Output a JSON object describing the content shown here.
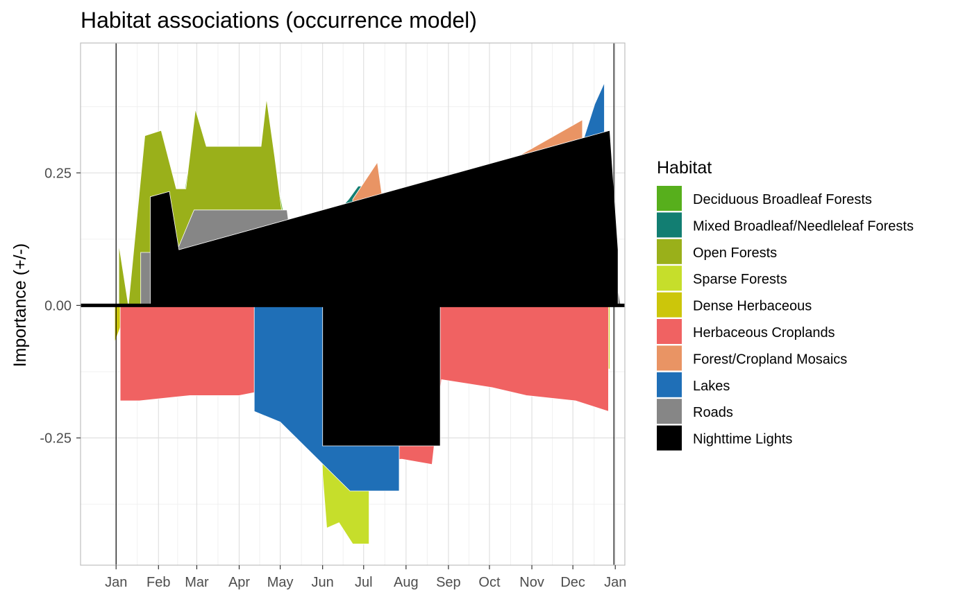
{
  "chart_data": {
    "type": "area",
    "title": "Habitat associations (occurrence model)",
    "xlabel": "",
    "ylabel": "Importance (+/-)",
    "ylim": [
      -0.49,
      0.495
    ],
    "y_ticks": [
      -0.25,
      0.0,
      0.25
    ],
    "y_tick_labels": [
      "-0.25",
      "0.00",
      "0.25"
    ],
    "x_unit": "day of year",
    "xlim": [
      -25,
      373
    ],
    "x_ticks": [
      1,
      32,
      60,
      91,
      121,
      152,
      182,
      213,
      244,
      274,
      305,
      335,
      366
    ],
    "x_tick_labels": [
      "Jan",
      "Feb",
      "Mar",
      "Apr",
      "May",
      "Jun",
      "Jul",
      "Aug",
      "Sep",
      "Oct",
      "Nov",
      "Dec",
      "Jan"
    ],
    "vlines": [
      1,
      365
    ],
    "zero_line": 0,
    "grid": true,
    "legend": {
      "title": "Habitat",
      "position": "right"
    },
    "series": [
      {
        "name": "Deciduous Broadleaf Forests",
        "color": "#57AF1C",
        "positive": [
          [
            45,
            0.1
          ],
          [
            53,
            0.25
          ],
          [
            59,
            0.18
          ],
          [
            105,
            0.18
          ],
          [
            109,
            0.275
          ],
          [
            116,
            0.28
          ],
          [
            123,
            0.18
          ],
          [
            125,
            0.09
          ],
          [
            129,
            0.1
          ],
          [
            130,
            0.106
          ],
          [
            150,
            0.122
          ],
          [
            156,
            0.183
          ],
          [
            162,
            0.186
          ],
          [
            167,
            0.18
          ],
          [
            169,
            0.185
          ],
          [
            175,
            0.19
          ],
          [
            180,
            0.195
          ],
          [
            186,
            0.19
          ],
          [
            193,
            0.143
          ],
          [
            210,
            0.135
          ],
          [
            231,
            0.115
          ],
          [
            250,
            0.095
          ],
          [
            269,
            0.083
          ],
          [
            274,
            0.15
          ],
          [
            284,
            0.0
          ]
        ],
        "negative": [],
        "peaks": [
          [
            345,
            0.22
          ]
        ]
      },
      {
        "name": "Mixed Broadleaf/Needleleaf Forests",
        "color": "#127E72",
        "positive": [
          [
            147,
            0.125
          ],
          [
            155,
            0.14
          ],
          [
            160,
            0.15
          ],
          [
            164,
            0.18
          ],
          [
            171,
            0.2
          ],
          [
            178,
            0.225
          ],
          [
            183,
            0.225
          ],
          [
            186,
            0.195
          ]
        ],
        "negative": []
      },
      {
        "name": "Open Forests",
        "color": "#9AB01A",
        "positive": [
          [
            3,
            0.115
          ],
          [
            10,
            0.0
          ],
          [
            22,
            0.32
          ],
          [
            34,
            0.33
          ],
          [
            45,
            0.22
          ],
          [
            52,
            0.22
          ],
          [
            59,
            0.37
          ],
          [
            67,
            0.3
          ],
          [
            85,
            0.3
          ],
          [
            107,
            0.3
          ],
          [
            111,
            0.39
          ],
          [
            117,
            0.28
          ],
          [
            122,
            0.18
          ]
        ],
        "negative": [
          [
            3,
            -0.09
          ]
        ],
        "peaks": [
          [
            195,
            0.265
          ]
        ]
      },
      {
        "name": "Sparse Forests",
        "color": "#C6DE2B",
        "positive": [
          [
            356,
            0.24
          ],
          [
            362,
            0.19
          ]
        ],
        "negative": [
          [
            134,
            -0.14
          ],
          [
            140,
            -0.18
          ],
          [
            150,
            -0.16
          ],
          [
            152,
            -0.32
          ],
          [
            155,
            -0.42
          ],
          [
            164,
            -0.41
          ],
          [
            174,
            -0.45
          ],
          [
            186,
            -0.45
          ]
        ]
      },
      {
        "name": "Dense Herbaceous",
        "color": "#CCC60A",
        "positive": [],
        "negative": [
          [
            0,
            -0.07
          ],
          [
            10,
            0.0
          ],
          [
            18,
            -0.11
          ],
          [
            39,
            -0.11
          ],
          [
            56,
            -0.115
          ],
          [
            62,
            -0.06
          ],
          [
            71,
            0.0
          ],
          [
            80,
            0.0
          ],
          [
            87,
            -0.115
          ],
          [
            120,
            -0.108
          ],
          [
            148,
            -0.103
          ],
          [
            210,
            -0.1
          ],
          [
            260,
            -0.105
          ],
          [
            310,
            -0.117
          ],
          [
            362,
            -0.12
          ]
        ]
      },
      {
        "name": "Herbaceous Croplands",
        "color": "#F06262",
        "negative": [
          [
            4,
            -0.18
          ],
          [
            18,
            -0.18
          ],
          [
            55,
            -0.17
          ],
          [
            91,
            -0.17
          ],
          [
            111,
            -0.16
          ],
          [
            147,
            -0.15
          ],
          [
            154,
            -0.3
          ],
          [
            210,
            -0.29
          ],
          [
            232,
            -0.3
          ],
          [
            239,
            -0.14
          ],
          [
            276,
            -0.155
          ],
          [
            301,
            -0.17
          ],
          [
            337,
            -0.18
          ],
          [
            361,
            -0.2
          ]
        ],
        "positive": [
          [
            346,
            0.185
          ]
        ]
      },
      {
        "name": "Forest/Cropland Mosaics",
        "color": "#E99464",
        "positive": [
          [
            174,
            0.2
          ],
          [
            192,
            0.27
          ],
          [
            198,
            0.16
          ],
          [
            205,
            0.15
          ],
          [
            342,
            0.35
          ]
        ],
        "negative": []
      },
      {
        "name": "Lakes",
        "color": "#1F6FB7",
        "positive": [
          [
            278,
            0.075
          ],
          [
            290,
            0.08
          ],
          [
            343,
            0.315
          ],
          [
            351,
            0.38
          ],
          [
            358,
            0.42
          ]
        ],
        "negative": [
          [
            102,
            -0.2
          ],
          [
            121,
            -0.22
          ],
          [
            172,
            -0.35
          ],
          [
            208,
            -0.35
          ]
        ]
      },
      {
        "name": "Roads",
        "color": "#868686",
        "positive": [
          [
            19,
            0.1
          ],
          [
            45,
            0.1
          ],
          [
            58,
            0.18
          ],
          [
            126,
            0.18
          ],
          [
            135,
            0.0
          ],
          [
            153,
            0.05
          ],
          [
            172,
            0.045
          ],
          [
            193,
            0.0
          ],
          [
            270,
            0.0
          ],
          [
            282,
            0.07
          ],
          [
            296,
            0.0
          ],
          [
            314,
            0.2
          ],
          [
            338,
            0.18
          ],
          [
            350,
            0.22
          ],
          [
            358,
            0.18
          ],
          [
            370,
            0.0
          ]
        ],
        "negative": []
      },
      {
        "name": "Nighttime Lights",
        "color": "#000000",
        "positive": [
          [
            26,
            0.205
          ],
          [
            40,
            0.215
          ],
          [
            47,
            0.105
          ],
          [
            362,
            0.33
          ],
          [
            368,
            0.105
          ]
        ],
        "negative": [
          [
            152,
            -0.265
          ],
          [
            209,
            -0.265
          ],
          [
            238,
            -0.265
          ]
        ]
      }
    ]
  }
}
